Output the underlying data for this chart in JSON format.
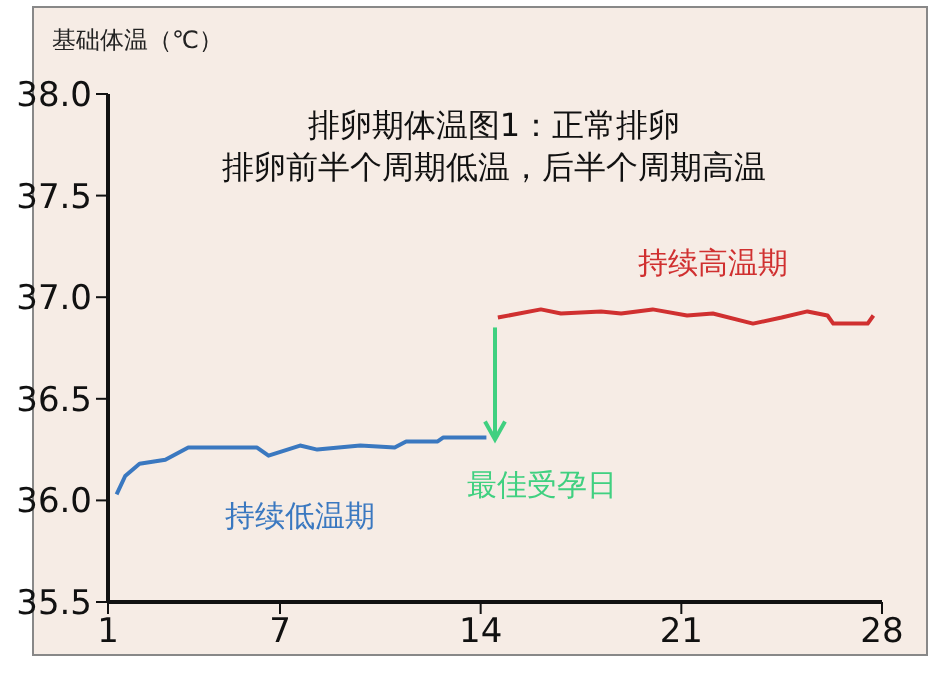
{
  "chart_data": {
    "type": "line",
    "title": "排卵期体温图1：正常排卵",
    "subtitle": "排卵前半个周期低温，后半个周期高温",
    "ylabel": "基础体温（℃）",
    "series": [
      {
        "name": "持续低温期",
        "color": "#3a78c0",
        "x": [
          1.3,
          1.6,
          2.1,
          3.0,
          3.8,
          6.2,
          6.6,
          7.7,
          8.3,
          9.8,
          11.0,
          11.4,
          12.5,
          12.7,
          14.2
        ],
        "values": [
          36.03,
          36.12,
          36.18,
          36.2,
          36.26,
          36.26,
          36.22,
          36.27,
          36.25,
          36.27,
          36.26,
          36.29,
          36.29,
          36.31,
          36.31
        ]
      },
      {
        "name": "持续高温期",
        "color": "#d03030",
        "x": [
          14.6,
          16.1,
          16.8,
          18.2,
          18.9,
          20.0,
          21.2,
          22.1,
          23.5,
          24.5,
          25.4,
          26.1,
          26.3,
          27.5,
          27.7
        ],
        "values": [
          36.9,
          36.94,
          36.92,
          36.93,
          36.92,
          36.94,
          36.91,
          36.92,
          36.87,
          36.9,
          36.93,
          36.91,
          36.87,
          36.87,
          36.91
        ]
      }
    ],
    "annotations": [
      {
        "text": "最佳受孕日",
        "x": 14.5,
        "y": 36.3
      }
    ],
    "xlim": [
      1,
      28
    ],
    "xticks": [
      1,
      7,
      14,
      21,
      28
    ],
    "ylim": [
      35.5,
      38.0
    ],
    "yticks": [
      {
        "value": 35.5,
        "label": "35.5"
      },
      {
        "value": 36.0,
        "label": "36.0"
      },
      {
        "value": 36.5,
        "label": "36.5"
      },
      {
        "value": 37.0,
        "label": "37.0"
      },
      {
        "value": 37.5,
        "label": "37.5"
      },
      {
        "value": 38.0,
        "label": "38.0"
      }
    ],
    "grid": false,
    "legend": false,
    "marker": "none",
    "line_style": "solid"
  }
}
